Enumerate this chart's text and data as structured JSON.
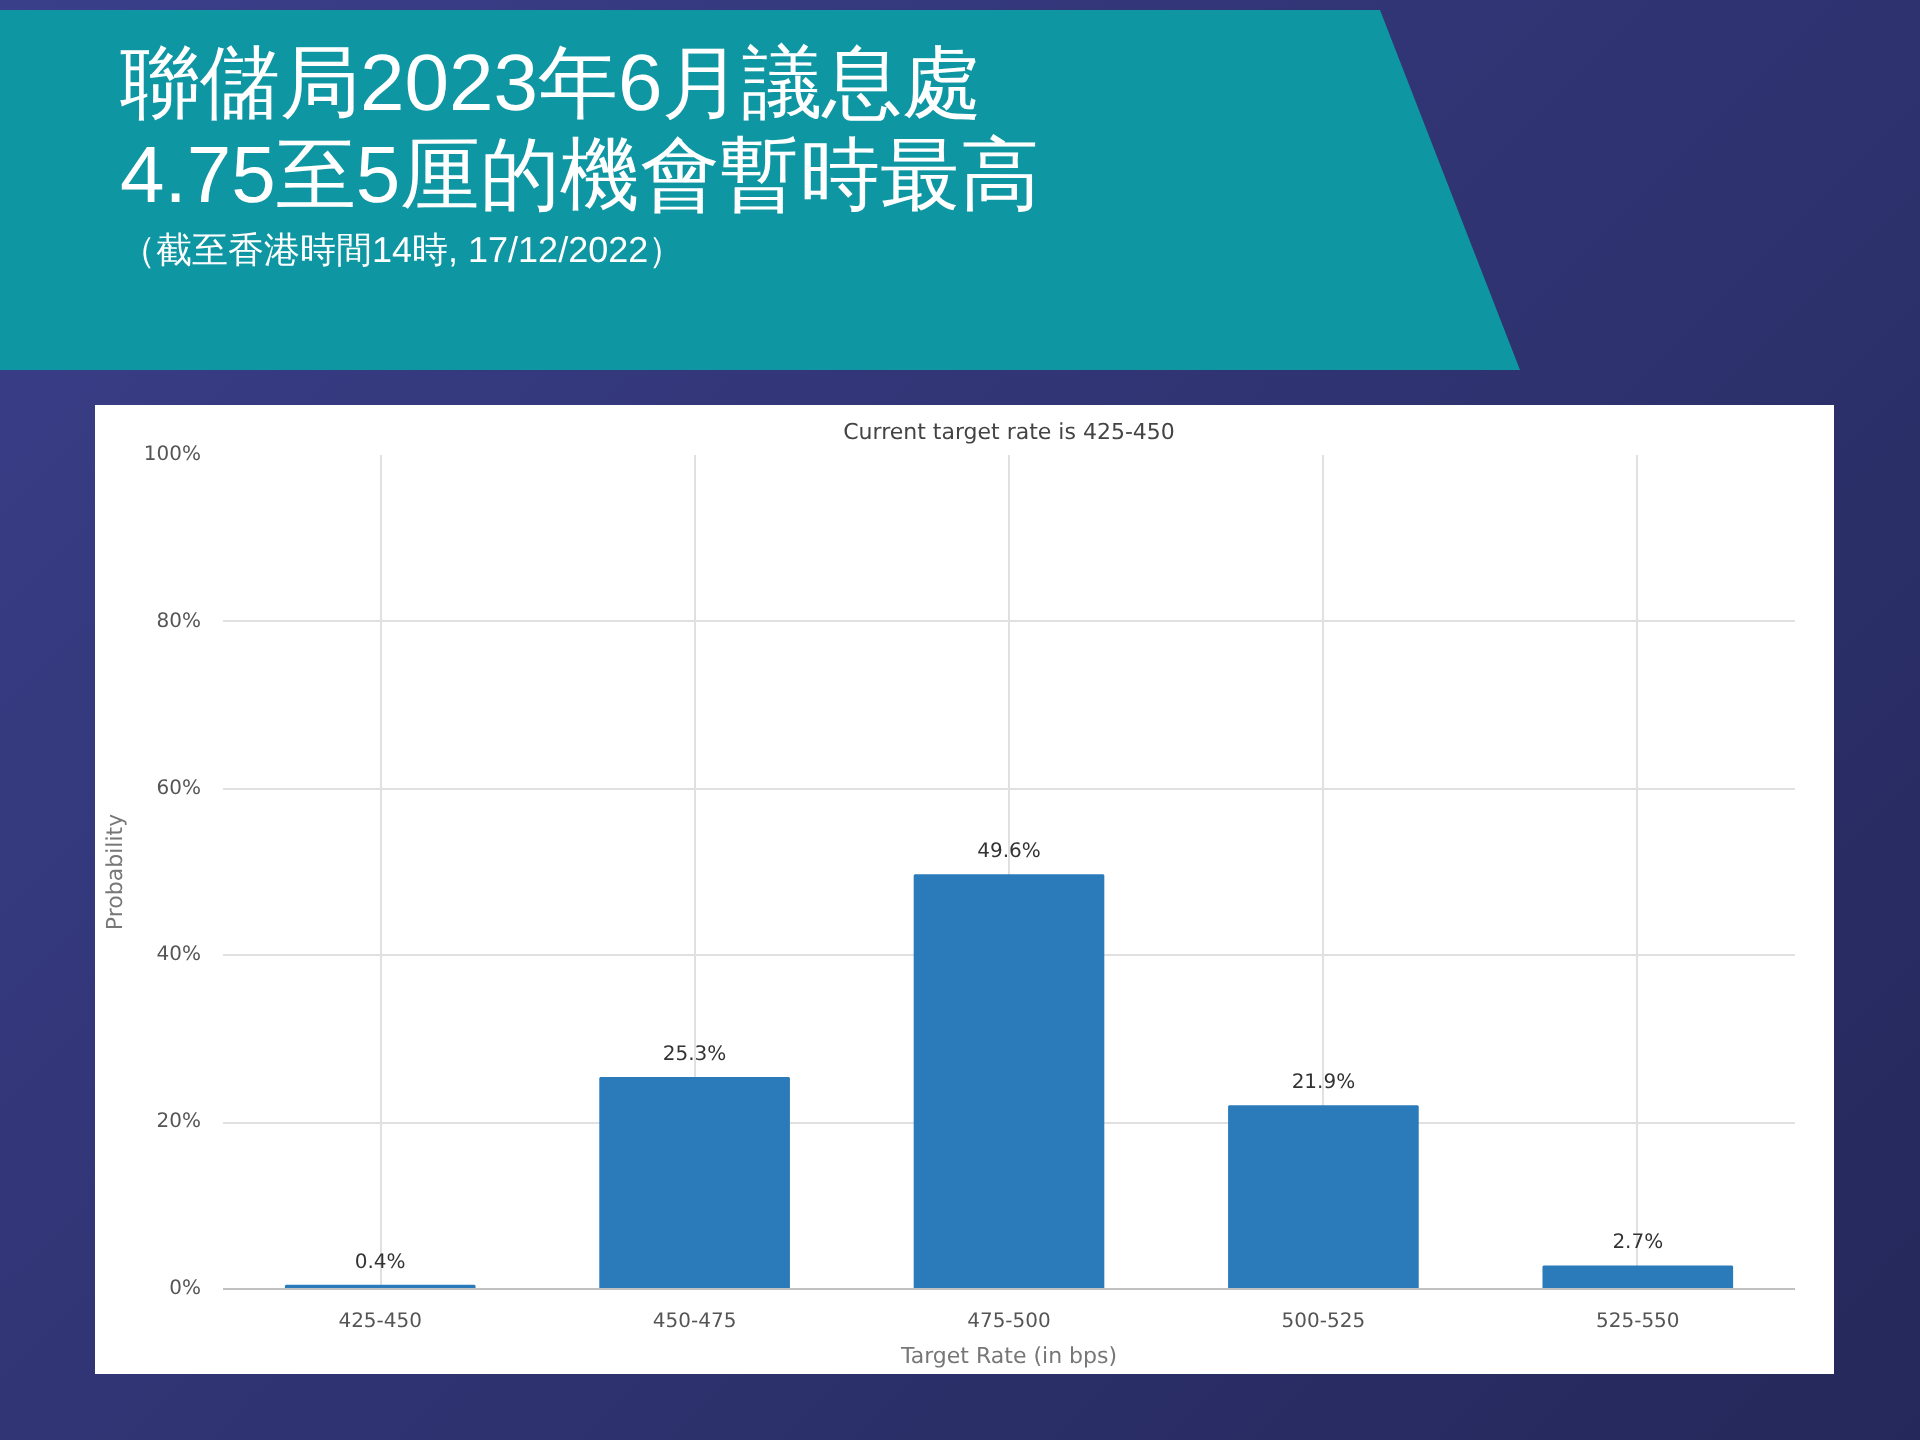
{
  "chart_data": {
    "type": "bar",
    "title": "聯儲局2023年6月議息處\n4.75至5厘的機會暫時最高",
    "subtitle": "（截至香港時間14時, 17/12/2022）",
    "annotations": [
      "Current target rate is 425-450"
    ],
    "xlabel": "Target Rate (in bps)",
    "ylabel": "Probability",
    "categories": [
      "425-450",
      "450-475",
      "475-500",
      "500-525",
      "525-550"
    ],
    "values": [
      0.4,
      25.3,
      49.6,
      21.9,
      2.7
    ],
    "value_labels": [
      "0.4%",
      "25.3%",
      "49.6%",
      "21.9%",
      "2.7%"
    ],
    "color": "#2b7bba",
    "ylim": [
      0,
      100
    ],
    "yticks": [
      {
        "value": 0,
        "label": "0%"
      },
      {
        "value": 20,
        "label": "20%"
      },
      {
        "value": 40,
        "label": "40%"
      },
      {
        "value": 60,
        "label": "60%"
      },
      {
        "value": 80,
        "label": "80%"
      },
      {
        "value": 100,
        "label": "100%"
      }
    ],
    "grid": true
  }
}
